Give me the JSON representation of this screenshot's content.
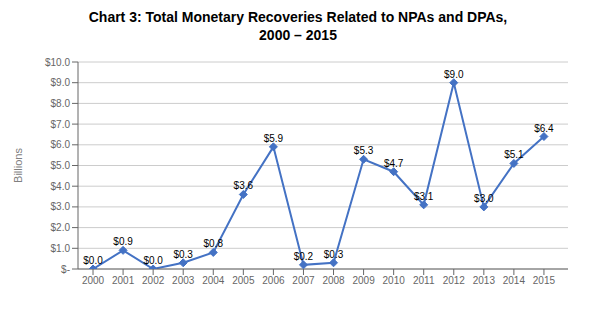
{
  "chart_data": {
    "type": "line",
    "title": "Chart 3: Total Monetary Recoveries Related to NPAs and DPAs,",
    "subtitle": "2000 – 2015",
    "x": [
      2000,
      2001,
      2002,
      2003,
      2004,
      2005,
      2006,
      2007,
      2008,
      2009,
      2010,
      2011,
      2012,
      2013,
      2014,
      2015
    ],
    "values": [
      0.0,
      0.9,
      0.0,
      0.3,
      0.8,
      3.6,
      5.9,
      0.2,
      0.3,
      5.3,
      4.7,
      3.1,
      9.0,
      3.0,
      5.1,
      6.4
    ],
    "value_labels": [
      "$0.0",
      "$0.9",
      "$0.0",
      "$0.3",
      "$0.8",
      "$3.6",
      "$5.9",
      "$0.2",
      "$0.3",
      "$5.3",
      "$4.7",
      "$3.1",
      "$9.0",
      "$3.0",
      "$5.1",
      "$6.4"
    ],
    "data_labels": true,
    "color": "#4472C4",
    "marker": "diamond",
    "ylabel": "Billions",
    "xlim": [
      1999.5,
      2015.8
    ],
    "xticks": [
      2000,
      2001,
      2002,
      2003,
      2004,
      2005,
      2006,
      2007,
      2008,
      2009,
      2010,
      2011,
      2012,
      2013,
      2014,
      2015
    ],
    "ylim": [
      0,
      10.0
    ],
    "yticks": [
      {
        "value": 0,
        "label": "$-"
      },
      {
        "value": 1.0,
        "label": "$1.0"
      },
      {
        "value": 2.0,
        "label": "$2.0"
      },
      {
        "value": 3.0,
        "label": "$3.0"
      },
      {
        "value": 4.0,
        "label": "$4.0"
      },
      {
        "value": 5.0,
        "label": "$5.0"
      },
      {
        "value": 6.0,
        "label": "$6.0"
      },
      {
        "value": 7.0,
        "label": "$7.0"
      },
      {
        "value": 8.0,
        "label": "$8.0"
      },
      {
        "value": 9.0,
        "label": "$9.0"
      },
      {
        "value": 10.0,
        "label": "$10.0"
      }
    ],
    "grid": true
  }
}
